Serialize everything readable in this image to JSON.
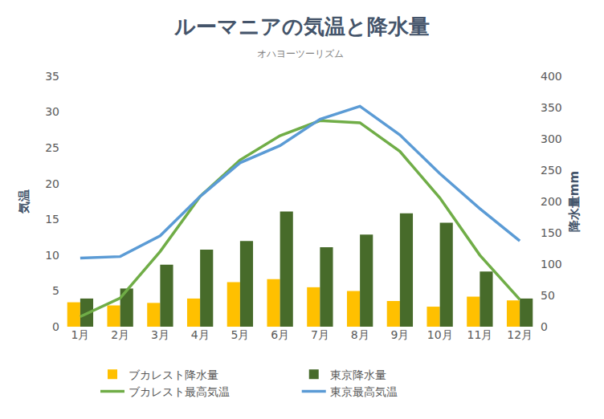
{
  "chart_data": {
    "type": "bar",
    "title": "ルーマニアの気温と降水量",
    "subtitle": "オハヨーツーリズム",
    "y_label": "気温",
    "y2_label": "降水量mm",
    "categories": [
      "1月",
      "2月",
      "3月",
      "4月",
      "5月",
      "6月",
      "7月",
      "8月",
      "9月",
      "10月",
      "11月",
      "12月"
    ],
    "series": [
      {
        "name": "ブカレスト降水量",
        "type": "bar",
        "axis": "y2",
        "color": "#ffc000",
        "values": [
          39,
          34,
          38,
          45,
          71,
          76,
          63,
          57,
          41,
          32,
          48,
          42
        ]
      },
      {
        "name": "東京降水量",
        "type": "bar",
        "axis": "y2",
        "color": "#476b2a",
        "values": [
          45,
          61,
          99,
          123,
          137,
          184,
          127,
          147,
          181,
          166,
          88,
          45
        ]
      },
      {
        "name": "ブカレスト最高気温",
        "type": "line",
        "color": "#70ad47",
        "values": [
          1.4,
          4.0,
          10.5,
          18.2,
          23.3,
          26.7,
          28.8,
          28.5,
          24.5,
          18.0,
          10.0,
          3.8
        ]
      },
      {
        "name": "東京最高気温",
        "type": "line",
        "color": "#5b9bd5",
        "values": [
          9.6,
          9.8,
          12.7,
          18.2,
          22.9,
          25.3,
          29.0,
          30.8,
          26.8,
          21.4,
          16.5,
          12.0
        ]
      }
    ],
    "ylim": [
      0,
      35
    ],
    "yticks": [
      0,
      5,
      10,
      15,
      20,
      25,
      30,
      35
    ],
    "y2lim": [
      0,
      400
    ],
    "y2ticks": [
      0,
      50,
      100,
      150,
      200,
      250,
      300,
      350,
      400
    ],
    "grid": false,
    "legend": "bottom"
  }
}
